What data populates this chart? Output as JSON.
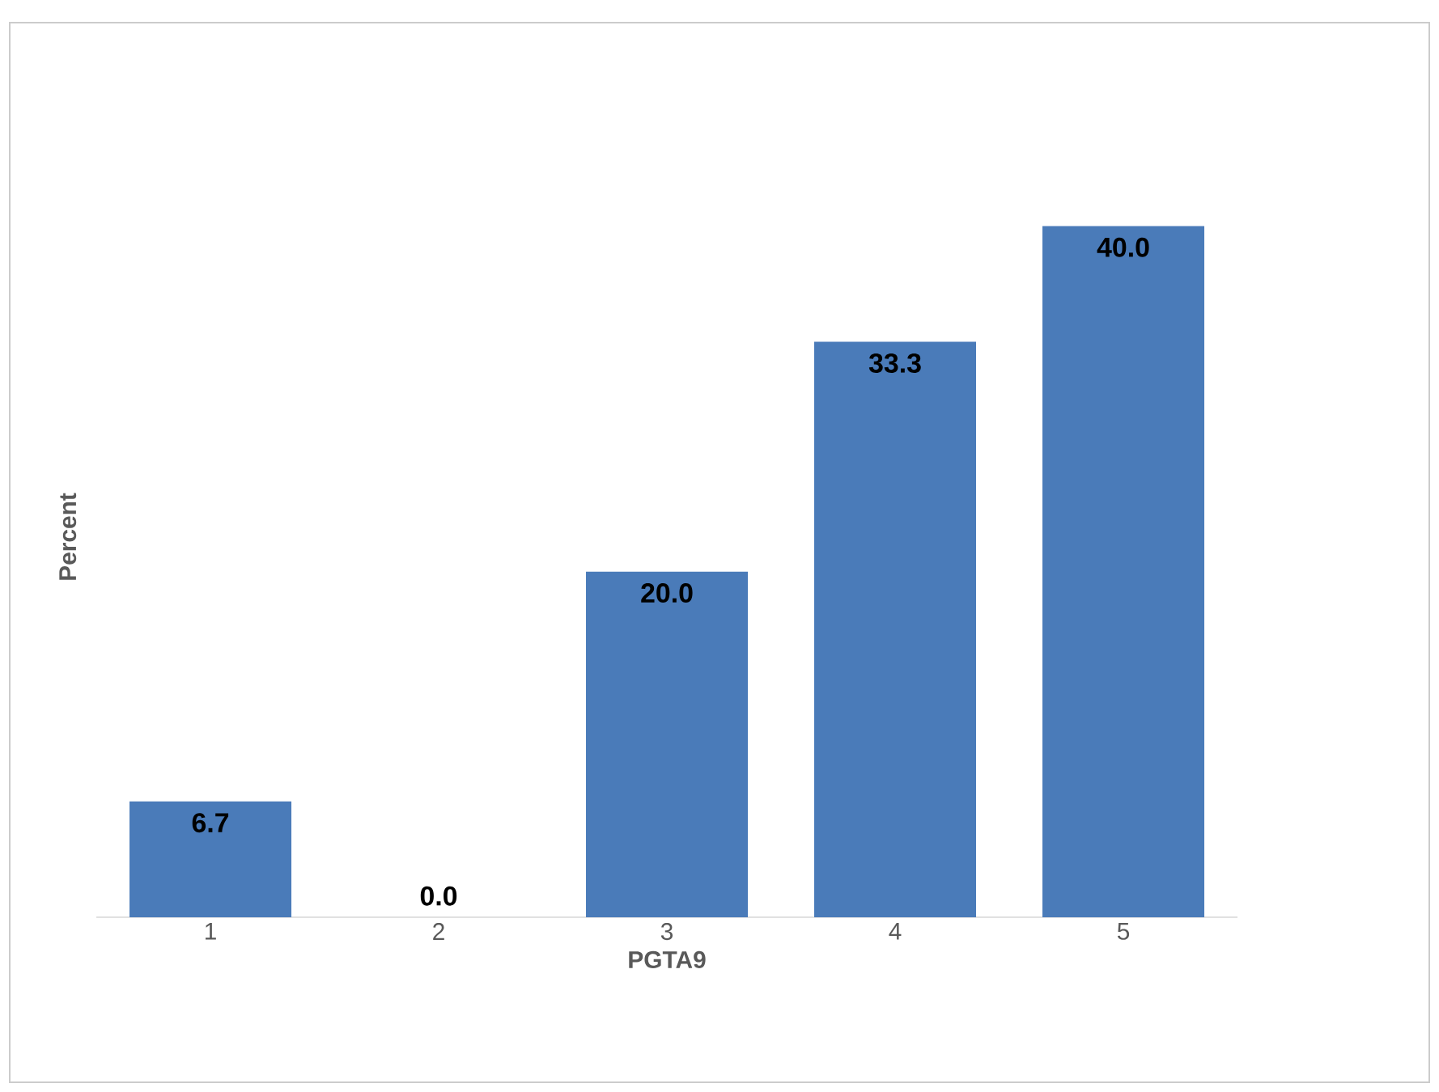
{
  "chart_data": {
    "type": "bar",
    "xlabel": "PGTA9",
    "ylabel": "Percent",
    "categories": [
      "1",
      "2",
      "3",
      "4",
      "5"
    ],
    "values": [
      6.7,
      0.0,
      20.0,
      33.3,
      40.0
    ],
    "value_labels": [
      "6.7",
      "0.0",
      "20.0",
      "33.3",
      "40.0"
    ],
    "color": "#4a7bb9",
    "tick_labels": "x"
  }
}
